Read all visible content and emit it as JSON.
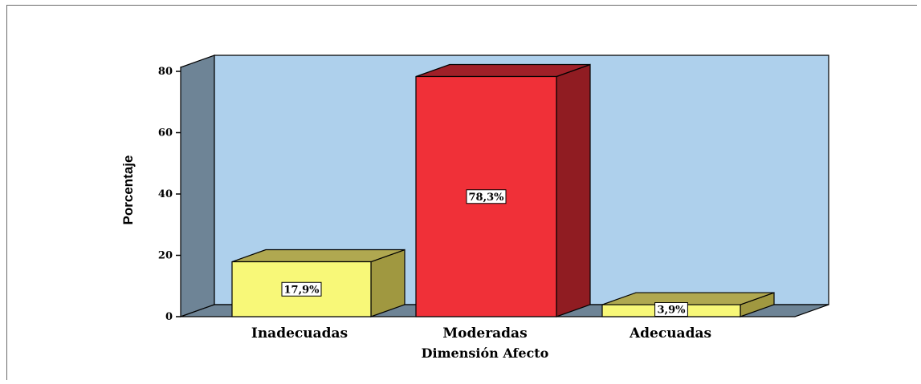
{
  "chart_data": {
    "type": "bar",
    "categories": [
      "Inadecuadas",
      "Moderadas",
      "Adecuadas"
    ],
    "values": [
      17.9,
      78.3,
      3.9
    ],
    "data_labels": [
      "17,9%",
      "78,3%",
      "3,9%"
    ],
    "xlabel": "Dimensión Afecto",
    "ylabel": "Porcentaje",
    "ylim": [
      0,
      80
    ],
    "yticks": [
      "0",
      "20",
      "40",
      "60",
      "80"
    ],
    "bar_colors": [
      "#f8f878",
      "#f03038",
      "#f8f878"
    ],
    "bar_top_colors": [
      "#b0a850",
      "#a02028",
      "#b0a850"
    ],
    "bar_side_colors": [
      "#a09840",
      "#901c22",
      "#a09840"
    ],
    "plot_background": "#aed0ec",
    "wall_color": "#6e8496",
    "grid": false,
    "legend": "none",
    "style": "3d"
  }
}
